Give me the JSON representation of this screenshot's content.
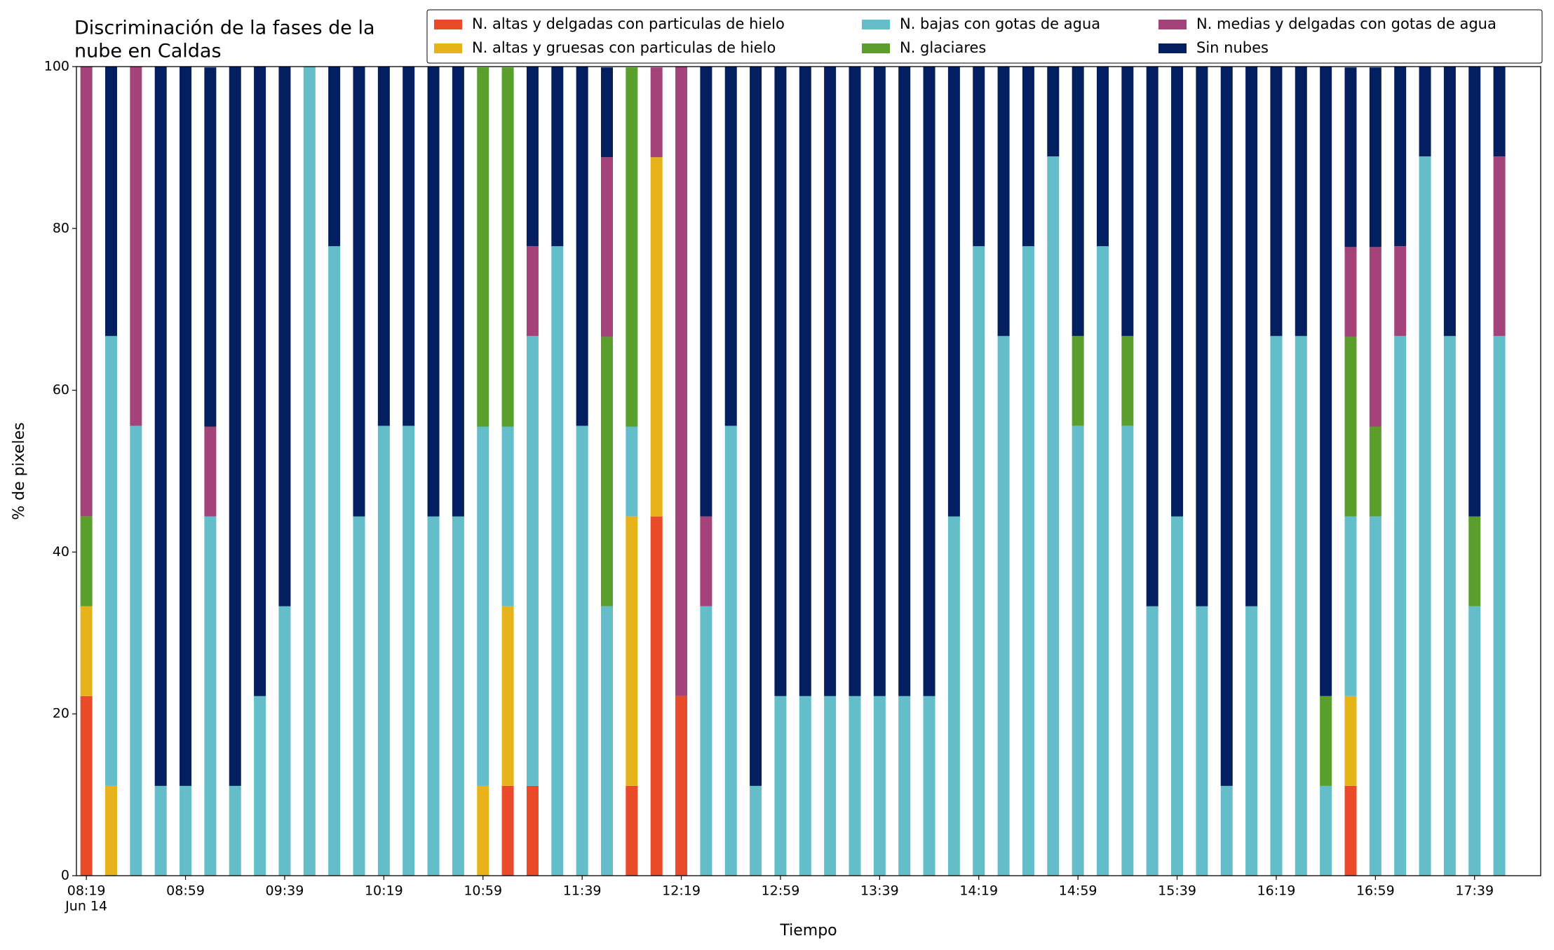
{
  "chart_data": {
    "type": "stacked_bar",
    "title": [
      "Discriminación de la fases de la",
      "nube en Caldas"
    ],
    "x_label": "Tiempo",
    "y_label": "% de pixeles",
    "date_label": "Jun 14",
    "categories": [
      "08:19",
      null,
      null,
      null,
      "08:59",
      null,
      null,
      null,
      "09:39",
      null,
      null,
      null,
      "10:19",
      null,
      null,
      null,
      "10:59",
      null,
      null,
      null,
      "11:39",
      null,
      null,
      null,
      "12:19",
      null,
      null,
      null,
      "12:59",
      null,
      null,
      null,
      "13:39",
      null,
      null,
      null,
      "14:19",
      null,
      null,
      null,
      "14:59",
      null,
      null,
      null,
      "15:39",
      null,
      null,
      null,
      "16:19",
      null,
      null,
      null,
      "16:59",
      null,
      null,
      null,
      "17:39",
      null
    ],
    "ylim": [
      0,
      100
    ],
    "yticks": [
      0,
      20,
      40,
      60,
      80,
      100
    ],
    "grid": false,
    "series": [
      {
        "name": "N. altas y delgadas con particulas de hielo",
        "color": "#e84a2a",
        "values": [
          22.2,
          0,
          0,
          0,
          0,
          0,
          0,
          0,
          0,
          0,
          0,
          0,
          0,
          0,
          0,
          0,
          0,
          11.1,
          11.1,
          0,
          0,
          0,
          11.1,
          44.4,
          22.2,
          0,
          0,
          0,
          0,
          0,
          0,
          0,
          0,
          0,
          0,
          0,
          0,
          0,
          0,
          0,
          0,
          0,
          0,
          0,
          0,
          0,
          0,
          0,
          0,
          0,
          0,
          11.1,
          0,
          0,
          0,
          0,
          0,
          0
        ]
      },
      {
        "name": "N. altas y gruesas con particulas de hielo",
        "color": "#e6b41a",
        "values": [
          11.1,
          11.1,
          0,
          0,
          0,
          0,
          0,
          0,
          0,
          0,
          0,
          0,
          0,
          0,
          0,
          0,
          11.1,
          22.2,
          0,
          0,
          0,
          0,
          33.3,
          44.4,
          0,
          0,
          0,
          0,
          0,
          0,
          0,
          0,
          0,
          0,
          0,
          0,
          0,
          0,
          0,
          0,
          0,
          0,
          0,
          0,
          0,
          0,
          0,
          0,
          0,
          0,
          0,
          11.1,
          0,
          0,
          0,
          0,
          0,
          0
        ]
      },
      {
        "name": "N. bajas con gotas de agua",
        "color": "#63bec9",
        "values": [
          0,
          55.6,
          55.6,
          11.1,
          11.1,
          44.4,
          11.1,
          22.2,
          33.3,
          100,
          77.8,
          44.4,
          55.6,
          55.6,
          44.4,
          44.4,
          44.4,
          22.2,
          55.6,
          77.8,
          55.6,
          33.3,
          11.1,
          0,
          0,
          33.3,
          55.6,
          11.1,
          22.2,
          22.2,
          22.2,
          22.2,
          22.2,
          22.2,
          22.2,
          44.4,
          77.8,
          66.7,
          77.8,
          88.9,
          55.6,
          77.8,
          55.6,
          33.3,
          44.4,
          33.3,
          11.1,
          33.3,
          66.7,
          66.7,
          11.1,
          22.2,
          44.4,
          66.7,
          88.9,
          66.7,
          33.3,
          66.7
        ]
      },
      {
        "name": "N. glaciares",
        "color": "#5a9e2c",
        "values": [
          11.1,
          0,
          0,
          0,
          0,
          0,
          0,
          0,
          0,
          0,
          0,
          0,
          0,
          0,
          0,
          0,
          44.4,
          44.4,
          0,
          0,
          0,
          33.3,
          44.4,
          0,
          0,
          0,
          0,
          0,
          0,
          0,
          0,
          0,
          0,
          0,
          0,
          0,
          0,
          0,
          0,
          0,
          11.1,
          0,
          11.1,
          0,
          0,
          0,
          0,
          0,
          0,
          0,
          11.1,
          22.2,
          11.1,
          0,
          0,
          0,
          11.1,
          0
        ]
      },
      {
        "name": "N. medias y delgadas con gotas de agua",
        "color": "#a3437a",
        "values": [
          55.6,
          0,
          44.4,
          0,
          0,
          11.1,
          0,
          0,
          0,
          0,
          0,
          0,
          0,
          0,
          0,
          0,
          0,
          0,
          11.1,
          0,
          0,
          22.2,
          0,
          11.1,
          77.8,
          11.1,
          0,
          0,
          0,
          0,
          0,
          0,
          0,
          0,
          0,
          0,
          0,
          0,
          0,
          0,
          0,
          0,
          0,
          0,
          0,
          0,
          0,
          0,
          0,
          0,
          0,
          11.1,
          22.2,
          11.1,
          0,
          0,
          0,
          22.2
        ]
      },
      {
        "name": "Sin nubes",
        "color": "#031f60",
        "values": [
          0,
          33.3,
          0,
          88.9,
          88.9,
          44.4,
          88.9,
          77.8,
          66.7,
          0,
          22.2,
          55.6,
          44.4,
          44.4,
          55.6,
          55.6,
          0,
          0,
          22.2,
          22.2,
          44.4,
          11.1,
          0,
          0,
          0,
          55.6,
          44.4,
          88.9,
          77.8,
          77.8,
          77.8,
          77.8,
          77.8,
          77.8,
          77.8,
          55.6,
          22.2,
          33.3,
          22.2,
          11.1,
          33.3,
          22.2,
          33.3,
          66.7,
          55.6,
          66.7,
          88.9,
          66.7,
          33.3,
          33.3,
          77.8,
          22.2,
          22.2,
          22.2,
          11.1,
          33.3,
          55.6,
          11.1
        ]
      }
    ]
  }
}
